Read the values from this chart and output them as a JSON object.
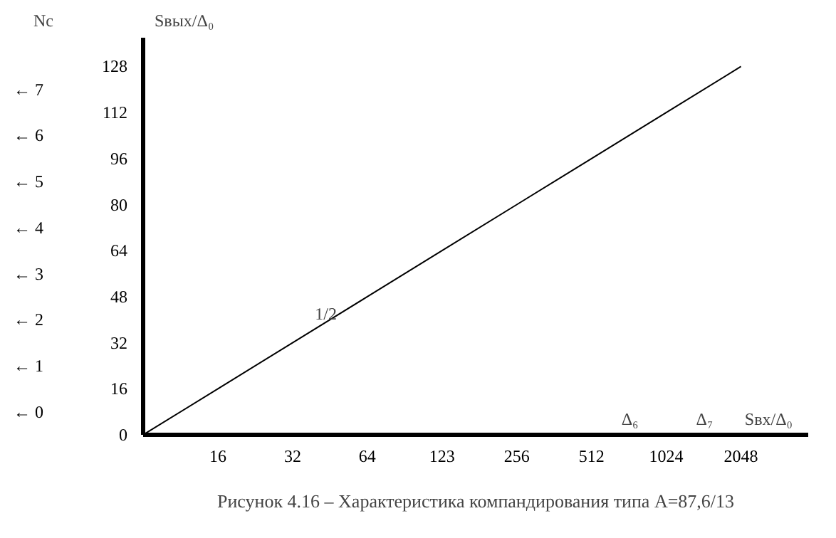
{
  "chart_data": {
    "type": "line",
    "xlabel": "Sвх/Δ₀",
    "ylabel": "Sвых/Δ₀",
    "categories": [
      null,
      "16",
      "32",
      "64",
      "123",
      "256",
      "512",
      "1024",
      "2048"
    ],
    "series": [
      {
        "color": "#000000",
        "values": [
          0,
          16,
          32,
          48,
          64,
          80,
          96,
          112,
          128
        ]
      }
    ],
    "ylim": [
      0,
      138
    ],
    "yticks": [
      0,
      16,
      32,
      48,
      64,
      80,
      96,
      112,
      128
    ],
    "grid": false,
    "marker": "none",
    "line_style": "solid",
    "annotations": [
      "Nc",
      "← 7",
      "← 6",
      "← 5",
      "← 4",
      "← 3",
      "← 2",
      "← 1",
      "← 0",
      "1/2",
      "Δ₆",
      "Δ₇",
      "Рисунок 4.16 – Характеристика компандирования типа А=87,6/13"
    ]
  }
}
